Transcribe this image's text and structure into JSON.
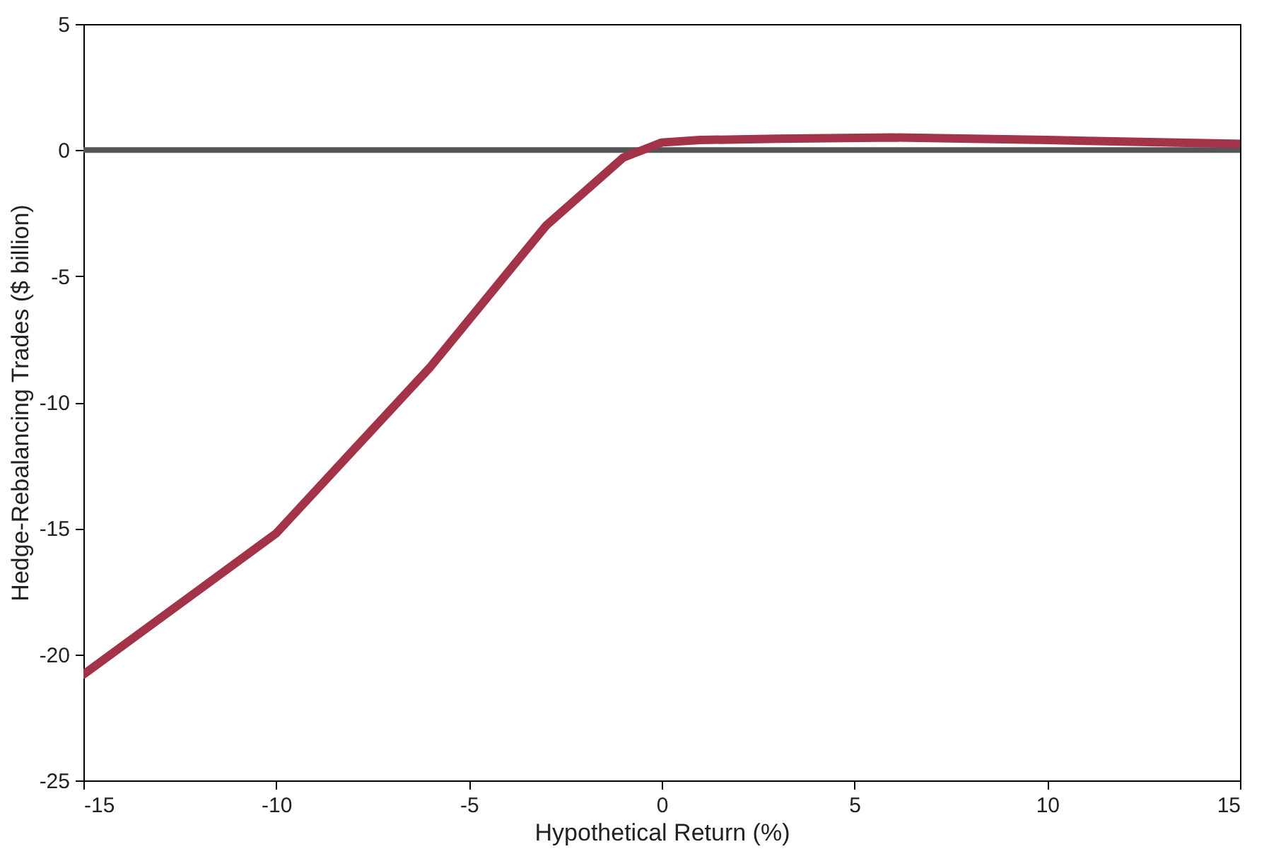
{
  "chart_data": {
    "type": "line",
    "xlabel": "Hypothetical Return (%)",
    "ylabel": "Hedge-Rebalancing Trades ($ billion)",
    "x": [
      -15,
      -10,
      -6,
      -3,
      -1,
      0,
      1,
      3,
      6,
      10,
      15
    ],
    "series": [
      {
        "color": "#a33349",
        "values": [
          -20.8,
          -15.2,
          -8.6,
          -3,
          -0.3,
          0.3,
          0.4,
          0.45,
          0.5,
          0.4,
          0.25
        ]
      }
    ],
    "xlim": [
      -15,
      15
    ],
    "xticks": [
      -15,
      -10,
      -5,
      0,
      5,
      10,
      15
    ],
    "ylim": [
      -25,
      5
    ],
    "yticks": [
      -25,
      -20,
      -15,
      -10,
      -5,
      0,
      5
    ],
    "ref_lines": [
      {
        "axis": "y",
        "value": 0,
        "color": "#555555"
      }
    ],
    "grid": false,
    "marker": "none",
    "line_style": "solid"
  }
}
